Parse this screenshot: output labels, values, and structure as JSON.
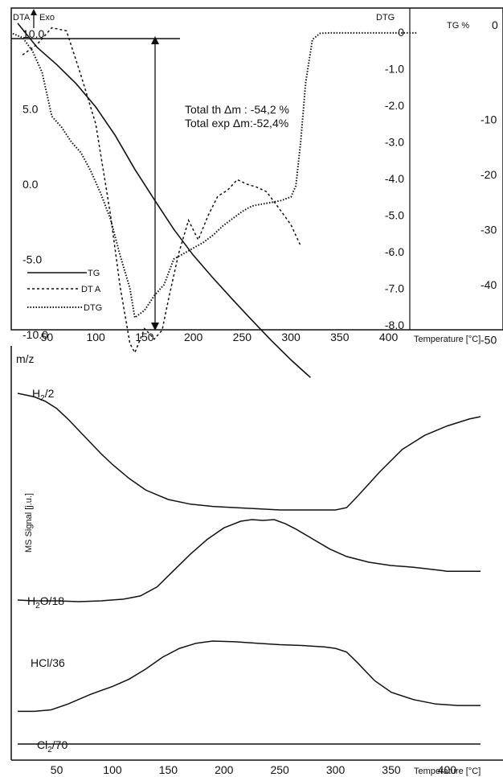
{
  "chart_data": [
    {
      "type": "line",
      "panel": "thermal-analysis",
      "title": "",
      "axis_left_label": "DTA",
      "exo_label": "Exo",
      "axis_dtg_label": "DTG",
      "axis_tg_label": "TG %",
      "xlabel": "Temperature [°C]",
      "xlim": [
        15,
        430
      ],
      "x_ticks": [
        "50",
        "100",
        "150",
        "200",
        "250",
        "300",
        "350",
        "400"
      ],
      "dta_ticks": [
        "10.0",
        "5.0",
        "0.0",
        "-5.0",
        "-10.0"
      ],
      "dtg_ticks": [
        "0",
        "-1.0",
        "-2.0",
        "-3.0",
        "-4.0",
        "-5.0",
        "-6.0",
        "-7.0",
        "-8.0"
      ],
      "tg_ticks": [
        "0",
        "-10",
        "-20",
        "-30",
        "-40",
        "-50"
      ],
      "annotation_lines": [
        "Total th Δm : -54,2 %",
        "Total exp Δm:-52,4%"
      ],
      "legend": [
        {
          "label": "TG",
          "style": "solid"
        },
        {
          "label": "DT A",
          "style": "dashed"
        },
        {
          "label": "DTG",
          "style": "dotted"
        }
      ],
      "legend_position": "lower-left",
      "series": [
        {
          "key": "TG",
          "axis": "tg",
          "x": [
            20,
            40,
            60,
            80,
            100,
            120,
            140,
            160,
            180,
            200,
            220,
            240,
            260,
            280,
            300,
            310,
            320
          ],
          "y": [
            0.6,
            -3.8,
            -6.9,
            -10.4,
            -14.6,
            -19.8,
            -25.9,
            -31.4,
            -36.8,
            -41.5,
            -45.6,
            -49.5,
            -53.3,
            -57.0,
            -60.5,
            -62.1,
            -63.7
          ]
        },
        {
          "key": "DTA",
          "axis": "dta",
          "x": [
            25,
            40,
            55,
            70,
            85,
            100,
            115,
            125,
            135,
            140,
            145,
            150,
            160,
            168,
            175,
            185,
            195,
            205,
            215,
            225,
            235,
            245,
            255,
            265,
            275,
            290,
            300,
            310
          ],
          "y": [
            8.6,
            9.3,
            10.4,
            10.2,
            7.2,
            4.0,
            -2.0,
            -6.8,
            -10.6,
            -11.2,
            -10.4,
            -9.6,
            -10.3,
            -9.7,
            -7.5,
            -4.6,
            -2.4,
            -3.7,
            -2.1,
            -0.8,
            -0.4,
            0.3,
            0.0,
            -0.2,
            -0.5,
            -1.8,
            -2.7,
            -4.1
          ]
        },
        {
          "key": "DTG",
          "axis": "dtg",
          "x": [
            15,
            25,
            35,
            45,
            55,
            65,
            75,
            85,
            95,
            105,
            115,
            125,
            135,
            140,
            150,
            160,
            170,
            180,
            190,
            200,
            210,
            220,
            230,
            240,
            250,
            260,
            270,
            280,
            290,
            300,
            305,
            310,
            315,
            322,
            330,
            340,
            360,
            380,
            400,
            420,
            430
          ],
          "y": [
            -0.04,
            -0.15,
            -0.5,
            -1.1,
            -2.3,
            -2.6,
            -3.0,
            -3.3,
            -3.8,
            -4.4,
            -5.1,
            -6.1,
            -7.0,
            -7.8,
            -7.6,
            -7.2,
            -6.9,
            -6.2,
            -6.05,
            -5.9,
            -5.75,
            -5.55,
            -5.3,
            -5.1,
            -4.9,
            -4.75,
            -4.7,
            -4.65,
            -4.6,
            -4.5,
            -4.2,
            -3.0,
            -1.4,
            -0.2,
            -0.03,
            -0.02,
            -0.02,
            -0.02,
            -0.02,
            -0.02,
            -0.02
          ]
        }
      ]
    },
    {
      "type": "line",
      "panel": "mass-spectrometry",
      "title": "",
      "ylabel_top": "m/z",
      "ylabel": "MS Signal [j.u.]",
      "xlabel": "Temperature [°C]",
      "xlim": [
        15,
        430
      ],
      "x_ticks": [
        "50",
        "100",
        "150",
        "200",
        "250",
        "300",
        "350",
        "400"
      ],
      "signal_labels": [
        {
          "base": "H",
          "sub": "2",
          "rest": "/2"
        },
        {
          "base": "H",
          "sub": "2",
          "rest": "O/18"
        },
        {
          "base": "HCl/36",
          "sub": "",
          "rest": ""
        },
        {
          "base": "Cl",
          "sub": "2",
          "rest": "/70"
        }
      ],
      "series": [
        {
          "key": "H2/2",
          "x": [
            15,
            30,
            40,
            50,
            60,
            70,
            80,
            90,
            100,
            115,
            130,
            150,
            170,
            190,
            210,
            230,
            250,
            270,
            290,
            300,
            310,
            320,
            340,
            360,
            380,
            400,
            420,
            430
          ],
          "y": [
            1.0,
            0.97,
            0.93,
            0.87,
            0.78,
            0.68,
            0.58,
            0.48,
            0.39,
            0.27,
            0.17,
            0.09,
            0.05,
            0.03,
            0.02,
            0.01,
            0.0,
            0.0,
            0.0,
            0.0,
            0.02,
            0.12,
            0.33,
            0.52,
            0.64,
            0.72,
            0.78,
            0.8
          ]
        },
        {
          "key": "H2O/18",
          "x": [
            15,
            30,
            50,
            70,
            90,
            110,
            125,
            140,
            155,
            170,
            185,
            200,
            215,
            225,
            235,
            245,
            255,
            265,
            280,
            295,
            310,
            330,
            350,
            370,
            395,
            400,
            420,
            430
          ],
          "y": [
            0.02,
            0.01,
            0.01,
            0.0,
            0.01,
            0.03,
            0.07,
            0.18,
            0.38,
            0.58,
            0.76,
            0.9,
            0.98,
            1.0,
            0.99,
            1.0,
            0.95,
            0.88,
            0.76,
            0.64,
            0.55,
            0.48,
            0.44,
            0.42,
            0.38,
            0.37,
            0.37,
            0.37
          ]
        },
        {
          "key": "HCl/36",
          "x": [
            15,
            30,
            45,
            60,
            80,
            100,
            115,
            130,
            145,
            160,
            175,
            190,
            210,
            230,
            250,
            270,
            290,
            300,
            310,
            320,
            335,
            350,
            370,
            390,
            410,
            430
          ],
          "y": [
            0.04,
            0.04,
            0.06,
            0.14,
            0.27,
            0.38,
            0.48,
            0.62,
            0.78,
            0.9,
            0.97,
            1.0,
            0.99,
            0.97,
            0.95,
            0.94,
            0.92,
            0.9,
            0.85,
            0.7,
            0.46,
            0.3,
            0.2,
            0.14,
            0.12,
            0.12
          ]
        },
        {
          "key": "Cl2/70",
          "x": [
            15,
            430
          ],
          "y": [
            0,
            0
          ]
        }
      ]
    }
  ]
}
